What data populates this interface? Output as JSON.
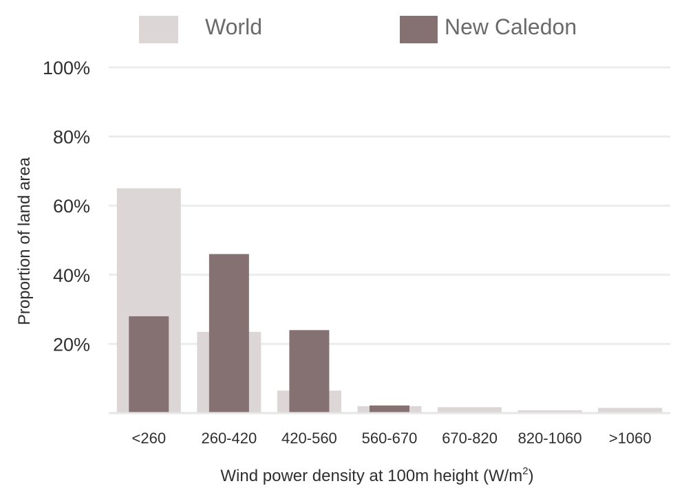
{
  "chart_data": {
    "type": "bar",
    "categories": [
      "<260",
      "260-420",
      "420-560",
      "560-670",
      "670-820",
      "820-1060",
      ">1060"
    ],
    "series": [
      {
        "name": "World",
        "values": [
          65,
          23.5,
          6.5,
          2,
          1.7,
          0.8,
          1.5
        ],
        "color": "#ddd6d6"
      },
      {
        "name": "New Caledon",
        "values": [
          28,
          46,
          24,
          2.2,
          0,
          0,
          0
        ],
        "color": "#857172"
      }
    ],
    "yticks": [
      "100%",
      "80%",
      "60%",
      "40%",
      "20%"
    ],
    "ylim": [
      0,
      100
    ],
    "ylabel": "Proportion of land area",
    "xlabel": "Wind power density at 100m height (W/m",
    "xlabel_sup": "2",
    "xlabel_end": ")",
    "grid": true,
    "legend": "top"
  }
}
